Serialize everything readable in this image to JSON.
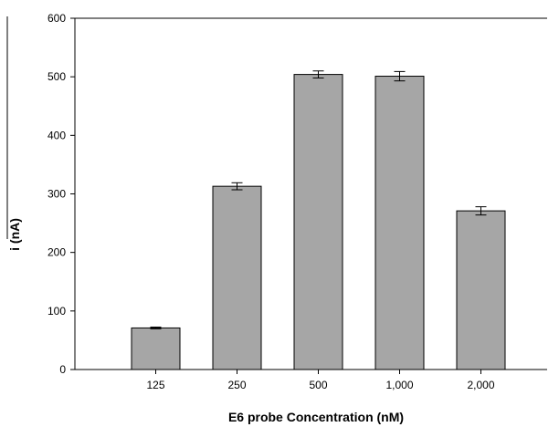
{
  "chart_data": {
    "type": "bar",
    "title": "",
    "xlabel": "E6 probe Concentration (nM)",
    "ylabel": "i (nA)",
    "categories": [
      "125",
      "250",
      "500",
      "1,000",
      "2,000"
    ],
    "values": [
      71,
      313,
      504,
      501,
      271
    ],
    "errors": [
      1.5,
      6,
      6,
      8,
      7
    ],
    "ylim": [
      0,
      600
    ],
    "yticks": [
      0,
      100,
      200,
      300,
      400,
      500,
      600
    ],
    "bar_color": "#a6a6a6",
    "bar_edge_color": "#000000",
    "grid": false,
    "legend": "none"
  }
}
